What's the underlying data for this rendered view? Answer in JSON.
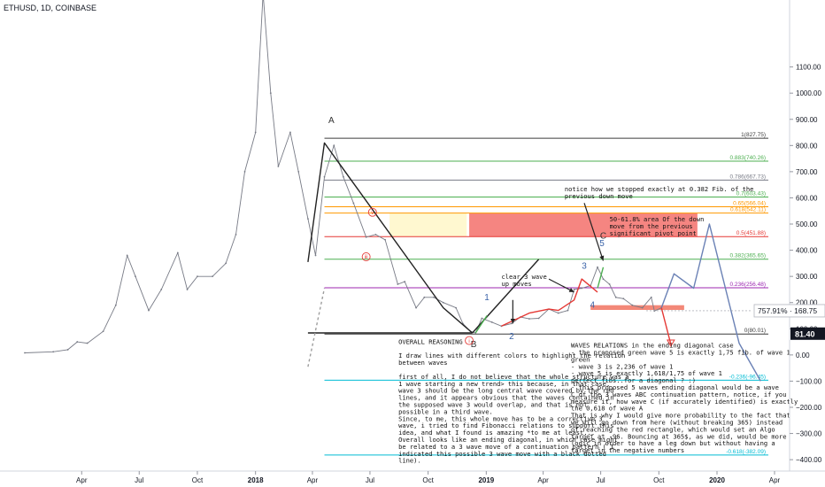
{
  "header": {
    "symbol": "ETHUSD, 1D, COINBASE"
  },
  "chart_data": {
    "type": "line",
    "title": "ETHUSD, 1D, COINBASE",
    "xlabel": "",
    "ylabel": "",
    "ylim": [
      -430,
      1420
    ],
    "y_ticks": [
      1100,
      1000,
      900,
      800,
      700,
      600,
      500,
      400,
      300,
      200,
      100,
      0,
      -100,
      -200,
      -300,
      -400
    ],
    "y_tick_labels": [
      "1100.00",
      "1000.00",
      "900.00",
      "800.00",
      "700.00",
      "600.00",
      "500.00",
      "400.00",
      "300.00",
      "200.00",
      "100.00",
      "0.00",
      "−100.00",
      "−200.00",
      "−300.00",
      "−400.00"
    ],
    "x_ticks": [
      {
        "label": "Apr",
        "date": "2017-04-01",
        "bold": false
      },
      {
        "label": "Jul",
        "date": "2017-07-01",
        "bold": false
      },
      {
        "label": "Oct",
        "date": "2017-10-01",
        "bold": false
      },
      {
        "label": "2018",
        "date": "2018-01-01",
        "bold": true
      },
      {
        "label": "Apr",
        "date": "2018-04-01",
        "bold": false
      },
      {
        "label": "Jul",
        "date": "2018-07-01",
        "bold": false
      },
      {
        "label": "Oct",
        "date": "2018-10-01",
        "bold": false
      },
      {
        "label": "2019",
        "date": "2019-01-01",
        "bold": true
      },
      {
        "label": "Apr",
        "date": "2019-04-01",
        "bold": false
      },
      {
        "label": "Jul",
        "date": "2019-07-01",
        "bold": false
      },
      {
        "label": "Oct",
        "date": "2019-10-01",
        "bold": false
      },
      {
        "label": "2020",
        "date": "2020-01-01",
        "bold": true
      },
      {
        "label": "Apr",
        "date": "2020-04-01",
        "bold": false
      }
    ],
    "price_series": {
      "name": "ETHUSD",
      "color": "#787b86",
      "x": [
        "2017-01-01",
        "2017-02-15",
        "2017-03-10",
        "2017-03-25",
        "2017-04-10",
        "2017-05-05",
        "2017-05-25",
        "2017-06-12",
        "2017-06-25",
        "2017-07-16",
        "2017-08-05",
        "2017-08-31",
        "2017-09-15",
        "2017-10-01",
        "2017-10-25",
        "2017-11-15",
        "2017-12-01",
        "2017-12-15",
        "2018-01-01",
        "2018-01-13",
        "2018-01-25",
        "2018-02-06",
        "2018-02-25",
        "2018-03-10",
        "2018-03-25",
        "2018-04-06",
        "2018-04-20",
        "2018-05-05",
        "2018-05-20",
        "2018-06-05",
        "2018-06-25",
        "2018-07-10",
        "2018-07-25",
        "2018-08-14",
        "2018-08-25",
        "2018-09-12",
        "2018-09-25",
        "2018-10-10",
        "2018-10-25",
        "2018-11-14",
        "2018-11-25",
        "2018-12-07",
        "2018-12-15",
        "2018-12-25",
        "2019-01-10",
        "2019-01-25",
        "2019-02-10",
        "2019-02-24",
        "2019-03-10",
        "2019-03-25",
        "2019-04-10",
        "2019-04-25",
        "2019-05-10",
        "2019-05-20",
        "2019-06-01",
        "2019-06-15",
        "2019-06-26",
        "2019-07-05",
        "2019-07-15",
        "2019-07-25",
        "2019-08-06",
        "2019-08-20",
        "2019-09-05",
        "2019-09-19",
        "2019-09-24",
        "2019-10-05"
      ],
      "y": [
        8,
        12,
        20,
        50,
        45,
        90,
        190,
        380,
        300,
        170,
        250,
        390,
        250,
        300,
        300,
        350,
        460,
        700,
        850,
        1380,
        1000,
        720,
        850,
        700,
        520,
        380,
        680,
        800,
        680,
        580,
        450,
        460,
        440,
        270,
        280,
        180,
        220,
        220,
        200,
        180,
        120,
        90,
        84,
        140,
        125,
        110,
        120,
        145,
        138,
        140,
        175,
        160,
        170,
        250,
        255,
        265,
        335,
        290,
        270,
        220,
        215,
        190,
        180,
        220,
        168,
        180
      ]
    },
    "current_price": {
      "pct": "757.91%",
      "value": "168.75",
      "y": 168.75
    },
    "last_value": {
      "value": "81.40",
      "y": 81.4
    },
    "fib_levels": [
      {
        "label": "1(827.75)",
        "value": 827.75,
        "color": "#3c3c3c"
      },
      {
        "label": "0.883(740.26)",
        "value": 740.26,
        "color": "#4caf50"
      },
      {
        "label": "0.786(667.73)",
        "value": 667.73,
        "color": "#787b86"
      },
      {
        "label": "0.7(603.43)",
        "value": 603.43,
        "color": "#4caf50"
      },
      {
        "label": "0.65(566.04)",
        "value": 566.04,
        "color": "#ff9800"
      },
      {
        "label": "0.618(542.11)",
        "value": 542.11,
        "color": "#ff9800"
      },
      {
        "label": "0.5(451.88)",
        "value": 451.88,
        "color": "#e53935"
      },
      {
        "label": "0.382(365.65)",
        "value": 365.65,
        "color": "#4caf50"
      },
      {
        "label": "0.236(256.48)",
        "value": 256.48,
        "color": "#9c27b0"
      },
      {
        "label": "0(80.01)",
        "value": 80.01,
        "color": "#3c3c3c"
      },
      {
        "label": "-0.236(-96.45)",
        "value": -96.45,
        "color": "#00bcd4"
      },
      {
        "label": "-0.618(-382.09)",
        "value": -382.09,
        "color": "#00bcd4"
      }
    ],
    "zones": [
      {
        "x0": "2018-12-05",
        "x1": "2019-12-01",
        "y0": 451.88,
        "y1": 542.11,
        "color": "rgba(240,75,70,0.68)"
      },
      {
        "x0": "2018-08-01",
        "x1": "2018-12-01",
        "y0": 451.88,
        "y1": 542.11,
        "color": "rgba(255,240,150,0.45)"
      },
      {
        "x0": "2019-06-15",
        "x1": "2019-11-10",
        "y0": 172,
        "y1": 190,
        "color": "rgba(240,110,90,0.82)"
      }
    ],
    "wave_lines": [
      {
        "color": "#222222",
        "dash": false,
        "x": [
          "2018-03-25",
          "2018-04-20",
          "2018-10-25",
          "2018-12-10"
        ],
        "y": [
          355,
          810,
          180,
          84
        ]
      },
      {
        "color": "#222222",
        "dash": false,
        "x": [
          "2018-12-10",
          "2019-03-25"
        ],
        "y": [
          84,
          365
        ]
      },
      {
        "color": "#222222",
        "dash": false,
        "x": [
          "2018-03-25",
          "2018-12-10"
        ],
        "y": [
          84,
          84
        ]
      },
      {
        "color": "#9e9e9e",
        "dash": true,
        "x": [
          "2018-03-25",
          "2018-04-20"
        ],
        "y": [
          -45,
          255
        ]
      },
      {
        "color": "#4caf50",
        "dash": false,
        "x": [
          "2018-12-15",
          "2019-01-02"
        ],
        "y": [
          84,
          150
        ]
      },
      {
        "color": "#4caf50",
        "dash": false,
        "x": [
          "2019-06-26",
          "2019-07-05"
        ],
        "y": [
          255,
          335
        ]
      },
      {
        "color": "#e53935",
        "dash": false,
        "x": [
          "2019-01-25",
          "2019-03-10",
          "2019-04-10",
          "2019-04-25",
          "2019-05-20",
          "2019-06-01",
          "2019-06-26"
        ],
        "y": [
          110,
          160,
          175,
          170,
          210,
          290,
          240
        ]
      },
      {
        "color": "#6a81b5",
        "dash": false,
        "x": [
          "2019-10-05",
          "2019-10-25",
          "2019-11-25",
          "2019-12-20",
          "2020-02-05",
          "2020-03-10"
        ],
        "y": [
          180,
          310,
          255,
          500,
          45,
          -100
        ]
      },
      {
        "color": "#e53935",
        "dash": false,
        "x": [
          "2019-10-05",
          "2019-10-20"
        ],
        "y": [
          180,
          40
        ]
      }
    ],
    "wave_labels": [
      {
        "text": "A",
        "x": "2018-05-01",
        "y": 885,
        "color": "#333333"
      },
      {
        "text": "B",
        "x": "2018-12-12",
        "y": 30,
        "color": "#333333"
      },
      {
        "text": "C",
        "x": "2019-07-05",
        "y": 445,
        "color": "#333333"
      },
      {
        "text": "1",
        "x": "2019-01-02",
        "y": 210,
        "color": "#3a63a8"
      },
      {
        "text": "2",
        "x": "2019-02-10",
        "y": 60,
        "color": "#3a63a8"
      },
      {
        "text": "3",
        "x": "2019-06-05",
        "y": 330,
        "color": "#3a63a8"
      },
      {
        "text": "4",
        "x": "2019-06-18",
        "y": 180,
        "color": "#3a63a8"
      },
      {
        "text": "5",
        "x": "2019-07-03",
        "y": 415,
        "color": "#3a63a8"
      }
    ],
    "circle_labels": [
      {
        "text": "v",
        "x": "2018-07-05",
        "y": 545
      },
      {
        "text": "iii",
        "x": "2018-06-25",
        "y": 375
      },
      {
        "text": "i",
        "x": "2018-12-05",
        "y": 55
      }
    ],
    "arrows": [
      {
        "x1": "2019-02-12",
        "x2": "2019-02-12",
        "y1": 210,
        "y2": 120,
        "color": "#222222"
      },
      {
        "x1": "2019-04-10",
        "x2": "2019-05-20",
        "y1": 290,
        "y2": 240,
        "color": "#222222"
      },
      {
        "x1": "2019-06-05",
        "x2": "2019-07-05",
        "y1": 580,
        "y2": 360,
        "color": "#222222"
      }
    ],
    "annotations": [
      {
        "lines": [
          "notice how we stopped exactly at 0.382 Fib. of the",
          "previous down move"
        ],
        "x": "2019-05-05",
        "y": 625
      },
      {
        "lines": [
          "50-61.8% area Of the down",
          "move from the previous",
          "significant pivot point"
        ],
        "x": "2019-07-15",
        "y": 510
      },
      {
        "lines": [
          "clear 3 wave",
          "up moves"
        ],
        "x": "2019-01-25",
        "y": 290
      },
      {
        "lines": [
          "OVERALL REASONING",
          "",
          "I draw lines with different colors to highlight the relation",
          "between waves",
          "",
          "first of all, I do not believe that the whole structure was a",
          "1 wave starting a new trend> this because, in that case,",
          "wave 3 should be the long central wave covered by the red",
          "lines, and it appears obvious that the waves contained in",
          "the supposed wave 3 would overlap, and that is not",
          "possible in a third wave.",
          "Since, to me, this whole move has to be a corrective 3",
          "wave, i tried to find Fibonacci relations to support this",
          "idea,  and what I found is amazing *to me at least...",
          "Overall looks like an ending diagonal, in which case might",
          "be related to a 3 wave move of a continuation pattern ( I",
          "indicated this possible 3 wave move with a black dotted",
          "line)."
        ],
        "x": "2018-08-15",
        "y": 42
      },
      {
        "lines": [
          "WAVES RELATIONS in the ending diagonal case",
          "- the proposed green wave 5 is exactly 1,75 fib. of wave 1",
          "green",
          "- wave 3 is 2,236 of wave 1",
          "- wave 5 is exactly 1,618/1,75 of wave 1",
          "perfect fibs..for a diagonal ? :)",
          "- this proposed 5 waves ending diagonal would be a wave",
          "C of the 3 waves ABC continuation pattern, notice, if you",
          "measure it, how wave C (if accurately identified) is exactly",
          "the 0,618 of wave A",
          "That is why  I would give more probability to the fact that",
          "we will go down from here (without breaking 365) instead",
          "of reaching the red rectangle, which would set an Algo",
          "target at -96. Bouncing at 365$, as we did, would be more",
          "logic in order to have a leg down but without having a",
          "target in the negative numbers"
        ],
        "x": "2019-05-15",
        "y": 28
      }
    ],
    "grid": false,
    "legend": "none"
  }
}
